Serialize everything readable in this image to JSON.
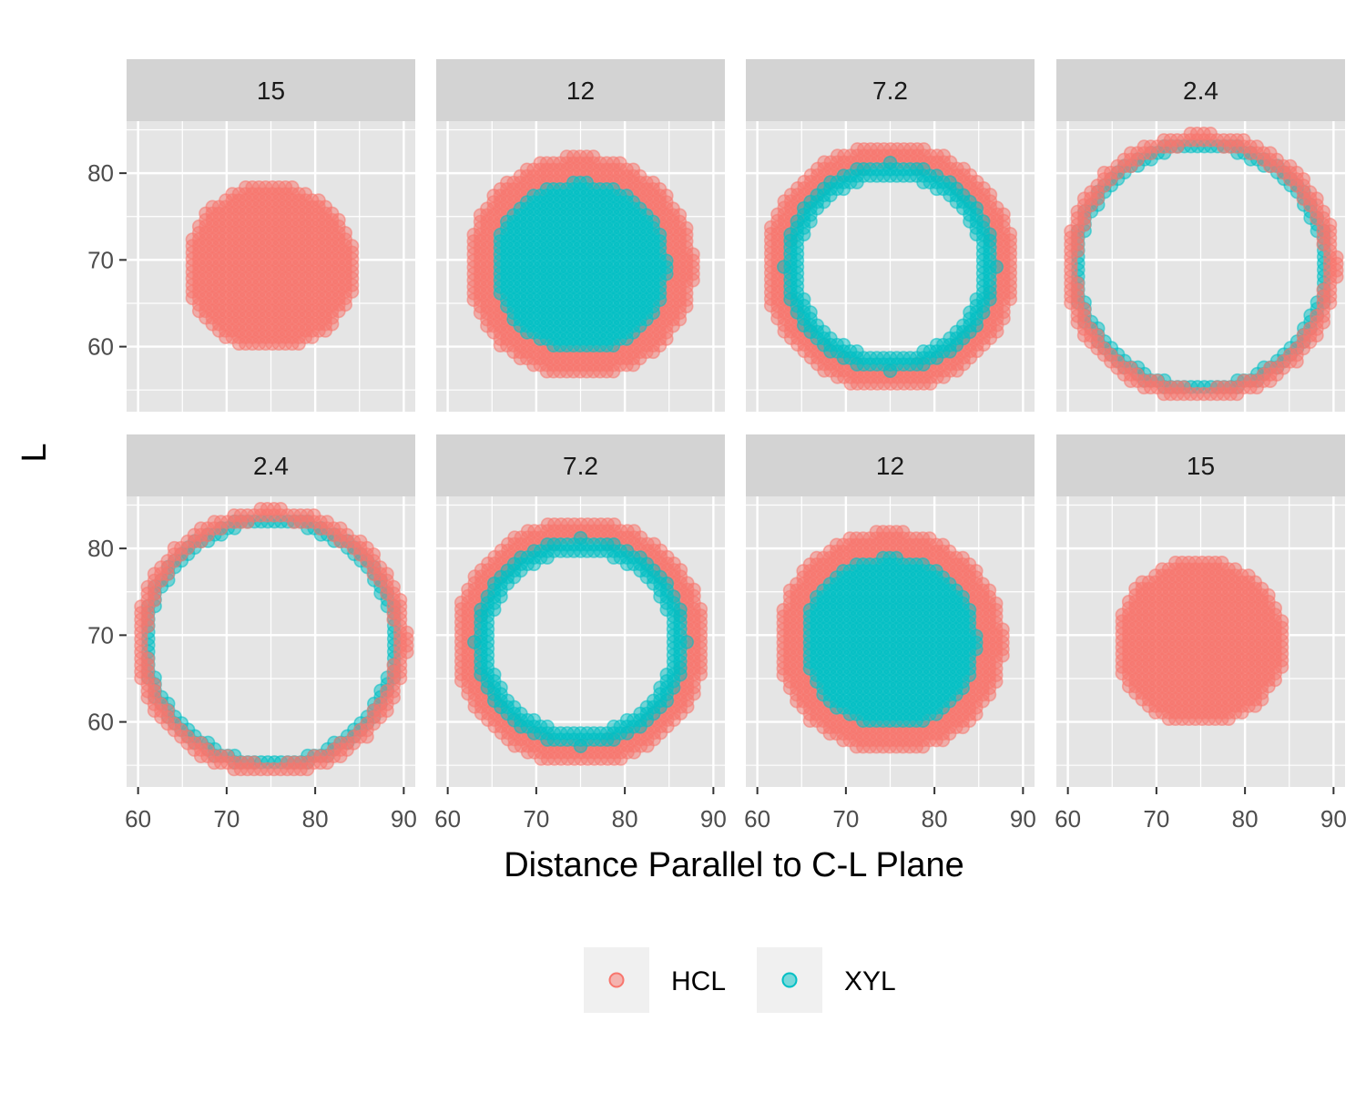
{
  "colors": {
    "HCL": "#F8766D",
    "XYL": "#00BFC4",
    "panel_bg": "#E5E5E5",
    "strip_bg": "#D3D3D3",
    "grid": "#FFFFFF"
  },
  "chart_data": {
    "type": "scatter",
    "xlabel": "Distance Parallel to C-L Plane",
    "ylabel": "L",
    "xlim": [
      58.7,
      91.3
    ],
    "ylim": [
      52.5,
      86.0
    ],
    "x_ticks": [
      60,
      70,
      80,
      90
    ],
    "x_tick_labels": [
      "60",
      "70",
      "80",
      "90"
    ],
    "y_ticks": [
      60,
      70,
      80
    ],
    "y_tick_labels": [
      "60",
      "70",
      "80"
    ],
    "grid": true,
    "legend": {
      "position": "bottom",
      "entries": [
        {
          "name": "HCL",
          "color": "#F8766D"
        },
        {
          "name": "XYL",
          "color": "#00BFC4"
        }
      ]
    },
    "center": [
      75,
      69.2
    ],
    "panels": [
      {
        "label": "15",
        "row": 0,
        "col": 0,
        "layers": [
          {
            "series": "HCL",
            "shape": "disk",
            "r_outer": 9.6
          }
        ]
      },
      {
        "label": "12",
        "row": 0,
        "col": 1,
        "layers": [
          {
            "series": "HCL",
            "shape": "ring",
            "r_inner": 9.8,
            "r_outer": 12.8
          },
          {
            "series": "XYL",
            "shape": "disk",
            "r_outer": 9.8
          }
        ]
      },
      {
        "label": "7.2",
        "row": 0,
        "col": 2,
        "layers": [
          {
            "series": "HCL",
            "shape": "ring",
            "r_inner": 11.6,
            "r_outer": 14.2
          },
          {
            "series": "XYL",
            "shape": "ring",
            "r_inner": 10.4,
            "r_outer": 12.0
          }
        ]
      },
      {
        "label": "2.4",
        "row": 0,
        "col": 3,
        "layers": [
          {
            "series": "XYL",
            "shape": "ring",
            "r_inner": 13.6,
            "r_outer": 14.6
          },
          {
            "series": "HCL",
            "shape": "ring",
            "r_inner": 14.0,
            "r_outer": 15.4
          }
        ]
      },
      {
        "label": "2.4",
        "row": 1,
        "col": 0,
        "layers": [
          {
            "series": "XYL",
            "shape": "ring",
            "r_inner": 13.6,
            "r_outer": 14.6
          },
          {
            "series": "HCL",
            "shape": "ring",
            "r_inner": 14.0,
            "r_outer": 15.4
          }
        ]
      },
      {
        "label": "7.2",
        "row": 1,
        "col": 1,
        "layers": [
          {
            "series": "HCL",
            "shape": "ring",
            "r_inner": 11.6,
            "r_outer": 14.2
          },
          {
            "series": "XYL",
            "shape": "ring",
            "r_inner": 10.4,
            "r_outer": 12.0
          }
        ]
      },
      {
        "label": "12",
        "row": 1,
        "col": 2,
        "layers": [
          {
            "series": "HCL",
            "shape": "ring",
            "r_inner": 9.8,
            "r_outer": 12.8
          },
          {
            "series": "XYL",
            "shape": "disk",
            "r_outer": 9.8
          }
        ]
      },
      {
        "label": "15",
        "row": 1,
        "col": 3,
        "layers": [
          {
            "series": "HCL",
            "shape": "disk",
            "r_outer": 9.6
          }
        ]
      }
    ]
  }
}
